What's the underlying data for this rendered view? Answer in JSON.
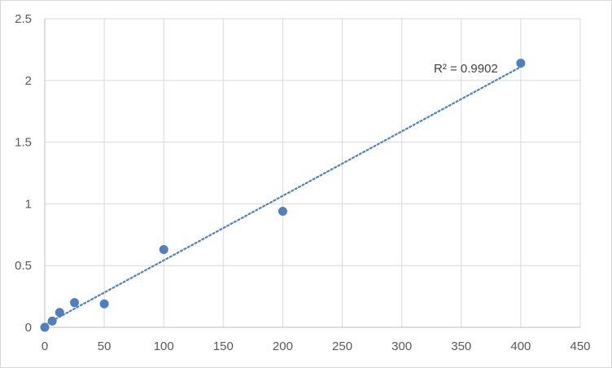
{
  "chart_data": {
    "type": "scatter",
    "title": "",
    "xlabel": "",
    "ylabel": "",
    "xlim": [
      0,
      450
    ],
    "ylim": [
      0,
      2.5
    ],
    "x_ticks": [
      0,
      50,
      100,
      150,
      200,
      250,
      300,
      350,
      400,
      450
    ],
    "y_ticks": [
      0,
      0.5,
      1,
      1.5,
      2,
      2.5
    ],
    "grid": true,
    "legend": "none",
    "series": [
      {
        "x": [
          0,
          6.25,
          12.5,
          25,
          50,
          100,
          200,
          400
        ],
        "y": [
          0.0,
          0.05,
          0.12,
          0.2,
          0.19,
          0.63,
          0.94,
          2.14
        ]
      }
    ],
    "trendline": {
      "type": "linear",
      "style": "dotted",
      "x_range": [
        0,
        400
      ],
      "y_range": [
        0.02,
        2.11
      ]
    },
    "annotation": "R² = 0.9902",
    "colors": {
      "marker": "#4f7fbf",
      "trendline": "#4f7fbf",
      "grid": "#d9d9d9",
      "axis": "#bfbfbf"
    }
  }
}
